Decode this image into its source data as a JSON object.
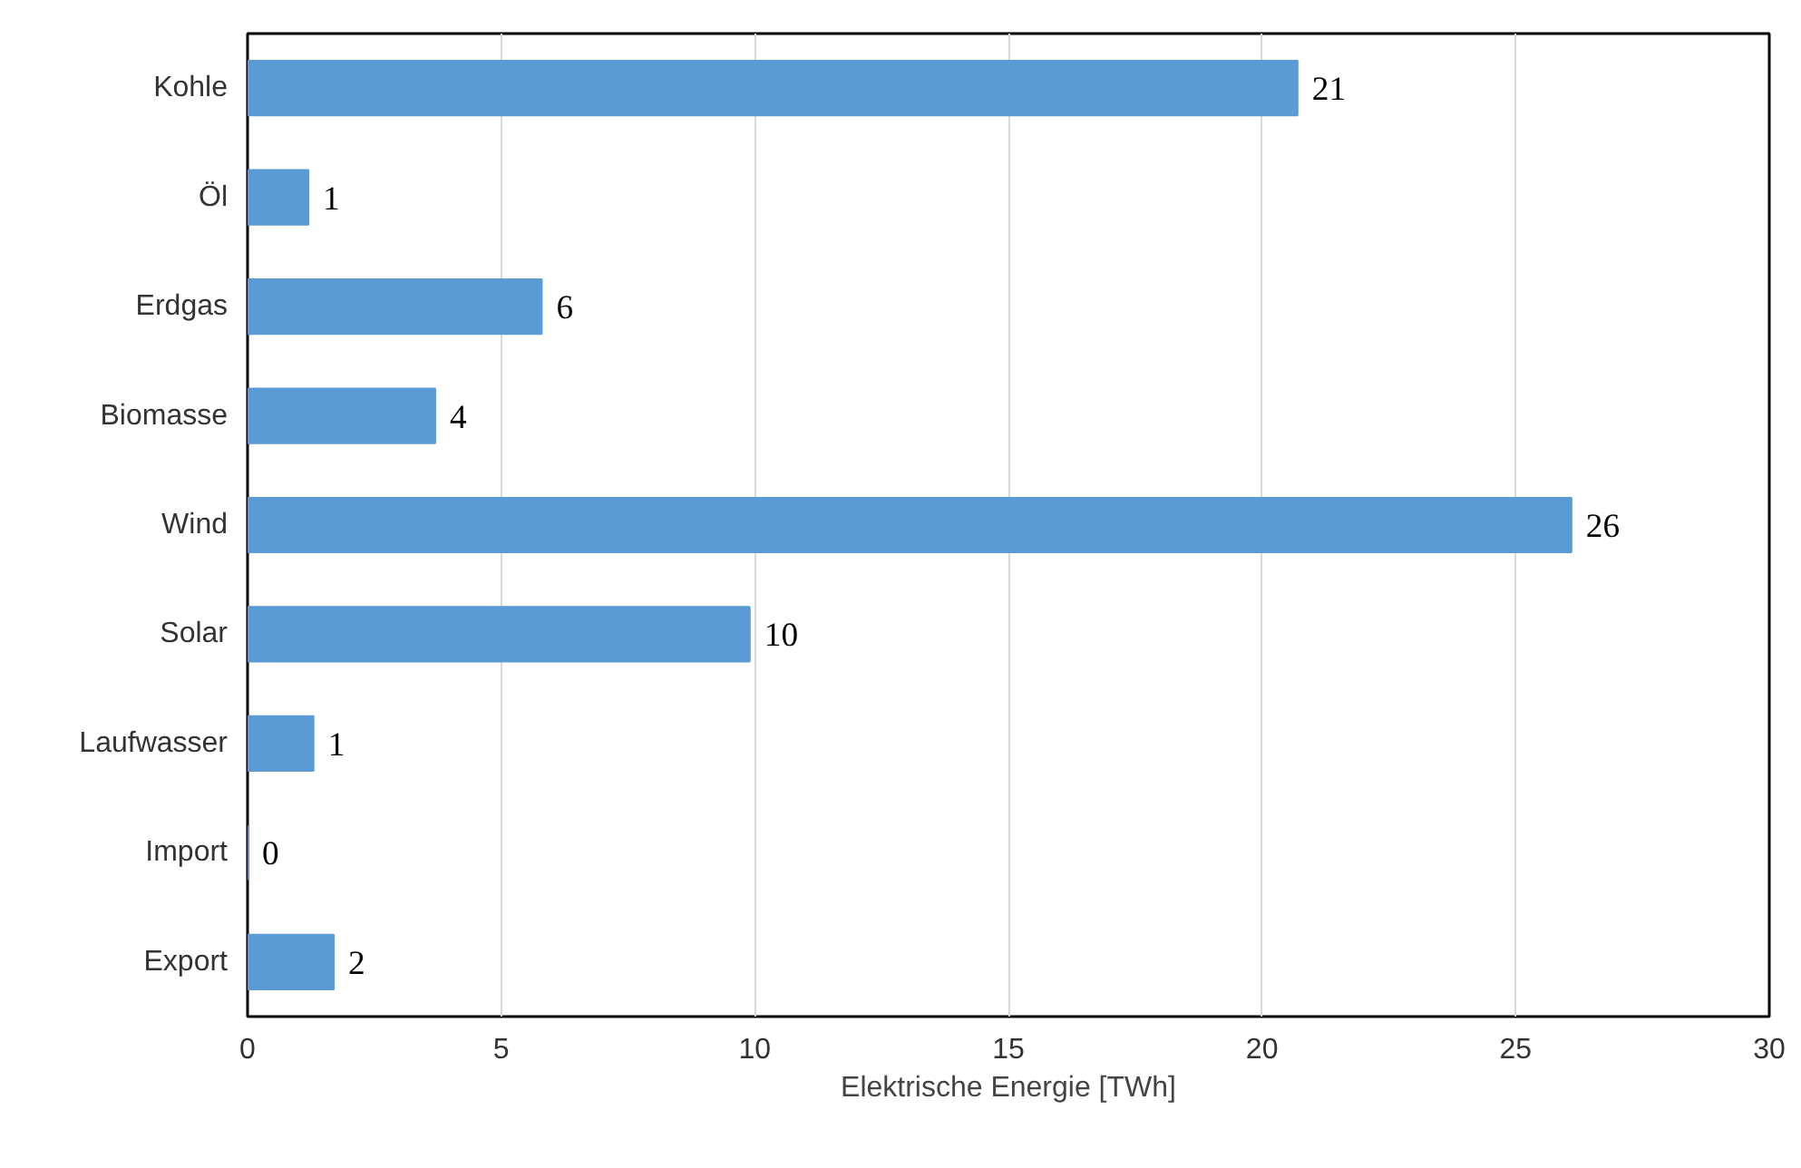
{
  "chart_data": {
    "type": "bar",
    "orientation": "horizontal",
    "xlabel": "Elektrische Energie [TWh]",
    "categories": [
      "Kohle",
      "Öl",
      "Erdgas",
      "Biomasse",
      "Wind",
      "Solar",
      "Laufwasser",
      "Import",
      "Export"
    ],
    "values": [
      20.7,
      1.2,
      5.8,
      3.7,
      26.1,
      9.9,
      1.3,
      0,
      1.7
    ],
    "value_labels": [
      "21",
      "1",
      "6",
      "4",
      "26",
      "10",
      "1",
      "0",
      "2"
    ],
    "color": "#5b9bd5",
    "xlim": [
      0,
      30
    ],
    "xticks": [
      0,
      5,
      10,
      15,
      20,
      25,
      30
    ],
    "grid": "x"
  }
}
